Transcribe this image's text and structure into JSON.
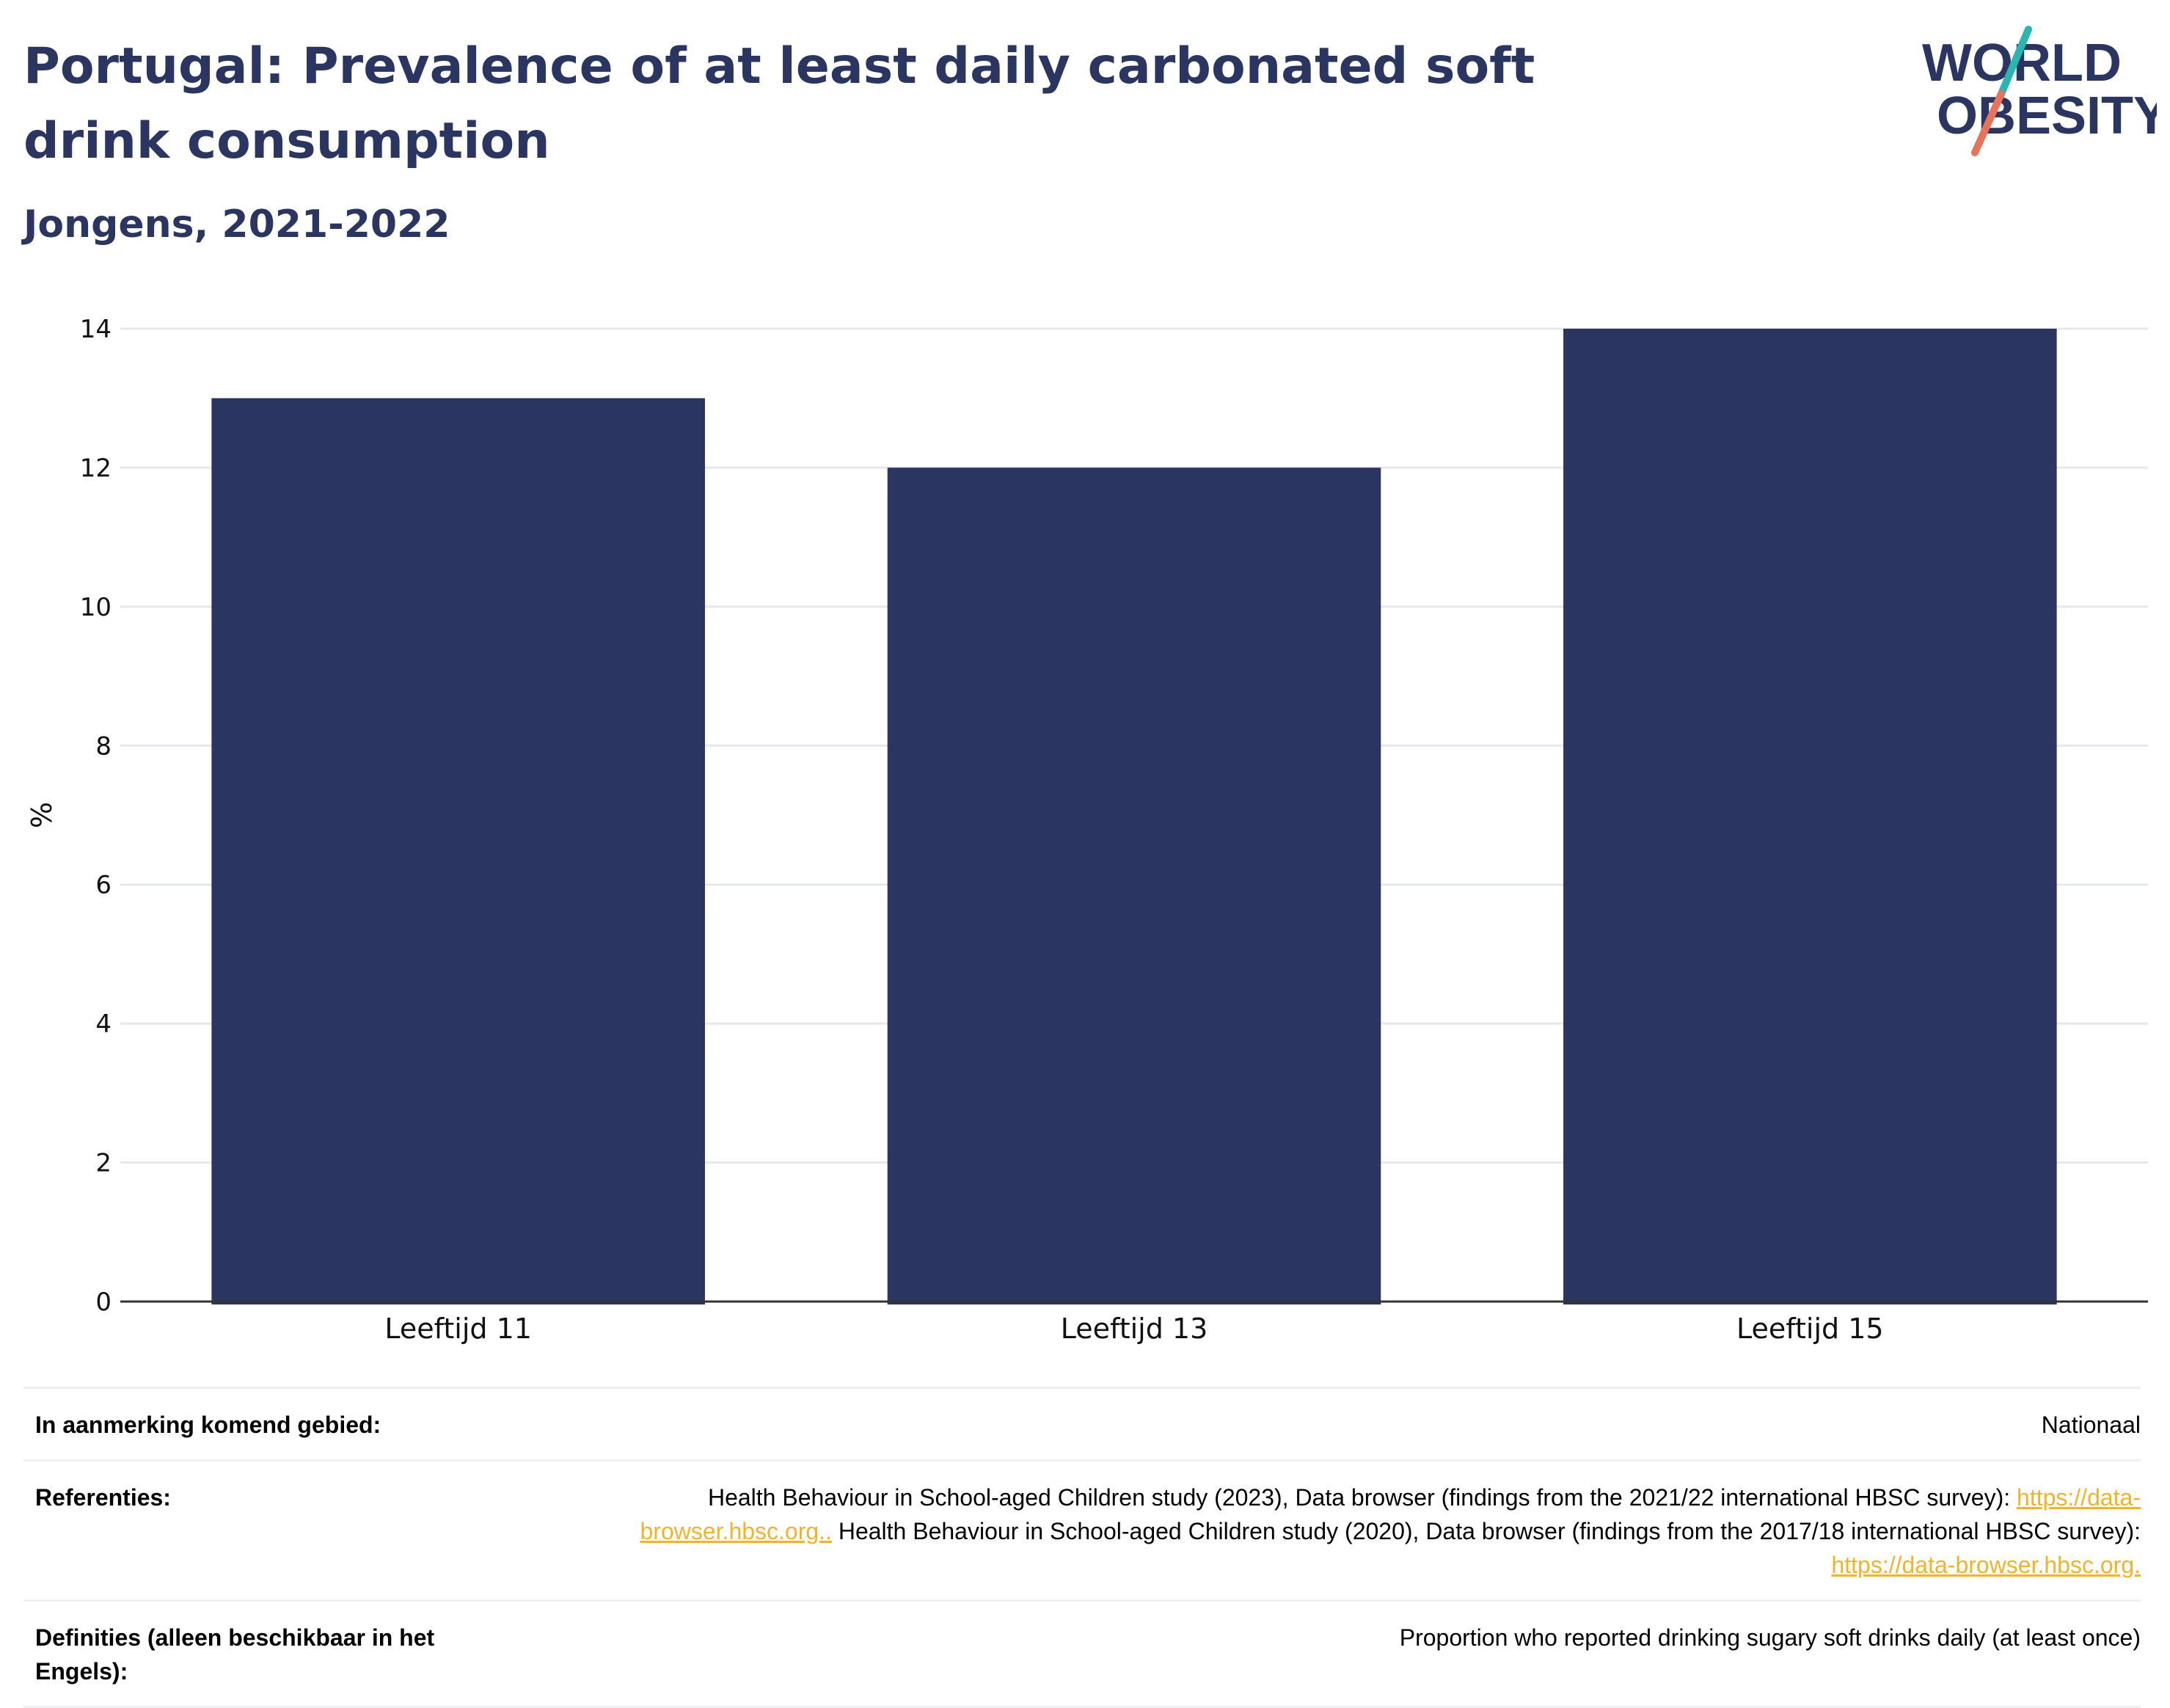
{
  "header": {
    "title": "Portugal: Prevalence of at least daily carbonated soft drink consumption",
    "subtitle": "Jongens, 2021-2022"
  },
  "logo": {
    "line1": "WORLD",
    "line2": "OBESITY",
    "accent_teal": "#2bb5b0",
    "accent_coral": "#e8735a",
    "text_color": "#2a3561"
  },
  "chart_data": {
    "type": "bar",
    "categories": [
      "Leeftijd 11",
      "Leeftijd 13",
      "Leeftijd 15"
    ],
    "values": [
      13,
      12,
      14
    ],
    "title": "",
    "xlabel": "",
    "ylabel": "%",
    "ylim": [
      0,
      14
    ],
    "yticks": [
      0,
      2,
      4,
      6,
      8,
      10,
      12,
      14
    ],
    "grid": true,
    "bar_color": "#2a3561"
  },
  "meta": {
    "rows": [
      {
        "label": "In aanmerking komend gebied:",
        "value": "Nationaal"
      },
      {
        "label": "Referenties:",
        "parts": [
          "Health Behaviour in School-aged Children study (2023), Data browser (findings from the 2021/22 international HBSC survey): ",
          "https://data-browser.hbsc.org..",
          " Health Behaviour in School-aged Children study (2020), Data browser (findings from the 2017/18 international HBSC survey): ",
          "https://data-browser.hbsc.org."
        ]
      },
      {
        "label": "Definities (alleen beschikbaar in het Engels):",
        "value": "Proportion who reported drinking sugary soft drinks daily (at least once)"
      }
    ]
  }
}
